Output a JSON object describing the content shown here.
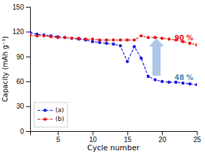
{
  "chart_data": {
    "type": "line",
    "x": [
      1,
      2,
      3,
      4,
      5,
      6,
      7,
      8,
      9,
      10,
      11,
      12,
      13,
      14,
      15,
      16,
      17,
      18,
      19,
      20,
      21,
      22,
      23,
      24,
      25
    ],
    "series": [
      {
        "name": "(a)",
        "color": "#1414e6",
        "marker": "circle",
        "line_style": "dashed",
        "values": [
          119,
          117,
          116,
          115,
          114,
          113,
          112,
          111,
          110,
          108,
          107,
          106,
          105,
          103,
          84,
          102,
          88,
          66,
          62,
          60,
          59,
          59,
          58,
          57,
          56
        ]
      },
      {
        "name": "(b)",
        "color": "#e61414",
        "marker": "circle",
        "line_style": "dashed",
        "values": [
          116,
          115,
          115,
          114,
          113,
          113,
          112,
          112,
          111,
          111,
          110,
          110,
          110,
          110,
          110,
          110,
          115,
          113,
          113,
          112,
          111,
          110,
          108,
          106,
          104
        ]
      }
    ],
    "x_label": "Cycle number",
    "y_label": "Capacity (mAh g⁻¹)",
    "xlim": [
      1,
      25
    ],
    "ylim": [
      0,
      150
    ],
    "xticks": [
      5,
      10,
      15,
      20,
      25
    ],
    "yticks": [
      0,
      30,
      60,
      90,
      120,
      150
    ],
    "grid": false,
    "legend": "lower left",
    "annotations": [
      {
        "text": "90 %",
        "x": 21.8,
        "y": 112,
        "color": "#e61414"
      },
      {
        "text": "48 %",
        "x": 21.8,
        "y": 64,
        "color": "steelblue"
      }
    ],
    "arrows": [
      {
        "x": 19.2,
        "y_from": 67,
        "y_to": 112,
        "color": "#aec6e8"
      }
    ]
  }
}
